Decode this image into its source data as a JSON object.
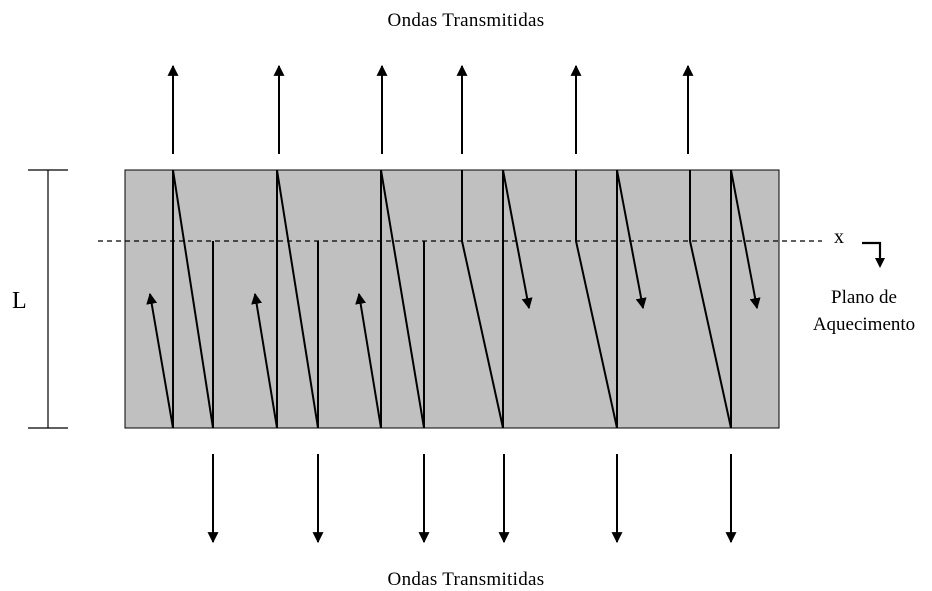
{
  "labels": {
    "top_title": "Ondas Transmitidas",
    "bottom_title": "Ondas Transmitidas",
    "length_symbol": "L",
    "position_symbol": "x",
    "heating_plane_line1": "Plano de",
    "heating_plane_line2": "Aquecimento"
  },
  "colors": {
    "slab_fill": "#c0c0c0",
    "stroke": "#000000",
    "background": "#ffffff"
  },
  "icons": {
    "up_arrow": "arrow-up-icon",
    "down_arrow": "arrow-down-icon",
    "heating_plane_indicator": "corner-down-arrow-icon"
  }
}
